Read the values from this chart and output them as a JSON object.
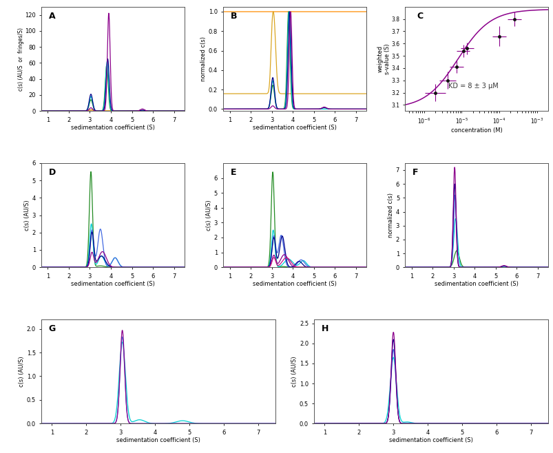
{
  "colors": {
    "purple": "#8B008B",
    "blue_dark": "#00008B",
    "blue_med": "#4169E1",
    "cyan": "#00CED1",
    "green": "#228B22",
    "yellow": "#DAA520",
    "orange": "#FF8C00",
    "magenta": "#C71585"
  },
  "panel_A": {
    "ylabel": "c(s) (AU/S  or  fringes/S)",
    "xlabel": "sedimentation coefficient (S)",
    "label": "A",
    "ylim": [
      0,
      130
    ],
    "xlim": [
      0.7,
      7.5
    ],
    "yticks": [
      0,
      20,
      40,
      60,
      80,
      100,
      120
    ]
  },
  "panel_B": {
    "ylabel": "normalized c(s)",
    "xlabel": "sedimentation coefficient (S)",
    "label": "B",
    "ylim": [
      -0.02,
      1.05
    ],
    "xlim": [
      0.7,
      7.5
    ],
    "yticks": [
      0.0,
      0.2,
      0.4,
      0.6,
      0.8,
      1.0
    ]
  },
  "panel_C": {
    "ylabel": "weighted\ns-value (S)",
    "xlabel": "concentration (M)",
    "label": "C",
    "ylim": [
      3.05,
      3.9
    ],
    "annotation": "KD = 8 ± 3 μM",
    "kd": 8e-06,
    "smin": 3.07,
    "smax": 3.88,
    "data_x": [
      2e-06,
      4.2e-06,
      7.3e-06,
      1.1e-05,
      1.4e-05,
      0.0001,
      0.00025
    ],
    "data_y": [
      3.2,
      3.3,
      3.41,
      3.54,
      3.56,
      3.66,
      3.8
    ],
    "data_xerr_log": [
      0.28,
      0.22,
      0.18,
      0.18,
      0.18,
      0.18,
      0.18
    ],
    "data_yerr": [
      0.07,
      0.07,
      0.05,
      0.05,
      0.05,
      0.08,
      0.06
    ],
    "yticks": [
      3.1,
      3.2,
      3.3,
      3.4,
      3.5,
      3.6,
      3.7,
      3.8
    ]
  },
  "panel_D": {
    "ylabel": "c(s) (AU/S)",
    "xlabel": "sedimentation coefficient (S)",
    "label": "D",
    "ylim": [
      0,
      6
    ],
    "xlim": [
      0.7,
      7.5
    ],
    "yticks": [
      0,
      1,
      2,
      3,
      4,
      5,
      6
    ]
  },
  "panel_E": {
    "ylabel": "c(s) (AU/S)",
    "xlabel": "sedimentation coefficient (S)",
    "label": "E",
    "ylim": [
      0,
      7
    ],
    "xlim": [
      0.7,
      7.5
    ],
    "yticks": [
      0,
      1,
      2,
      3,
      4,
      5,
      6
    ]
  },
  "panel_F": {
    "ylabel": "normalized c(s)",
    "xlabel": "sedimentation coefficient (S)",
    "label": "F",
    "ylim": [
      0,
      7.5
    ],
    "xlim": [
      0.7,
      7.5
    ],
    "yticks": [
      0,
      1,
      2,
      3,
      4,
      5,
      6,
      7
    ]
  },
  "panel_G": {
    "ylabel": "c(s) (AU/S)",
    "xlabel": "sedimentation coefficient (S)",
    "label": "G",
    "ylim": [
      0,
      2.2
    ],
    "xlim": [
      0.7,
      7.5
    ],
    "yticks": [
      0.0,
      0.5,
      1.0,
      1.5,
      2.0
    ]
  },
  "panel_H": {
    "ylabel": "c(s) (AU/S)",
    "xlabel": "sedimentation coefficient (S)",
    "label": "H",
    "ylim": [
      0,
      2.6
    ],
    "xlim": [
      0.7,
      7.5
    ],
    "yticks": [
      0.0,
      0.5,
      1.0,
      1.5,
      2.0,
      2.5
    ]
  },
  "background": "#ffffff",
  "xticks": [
    1,
    2,
    3,
    4,
    5,
    6,
    7
  ]
}
